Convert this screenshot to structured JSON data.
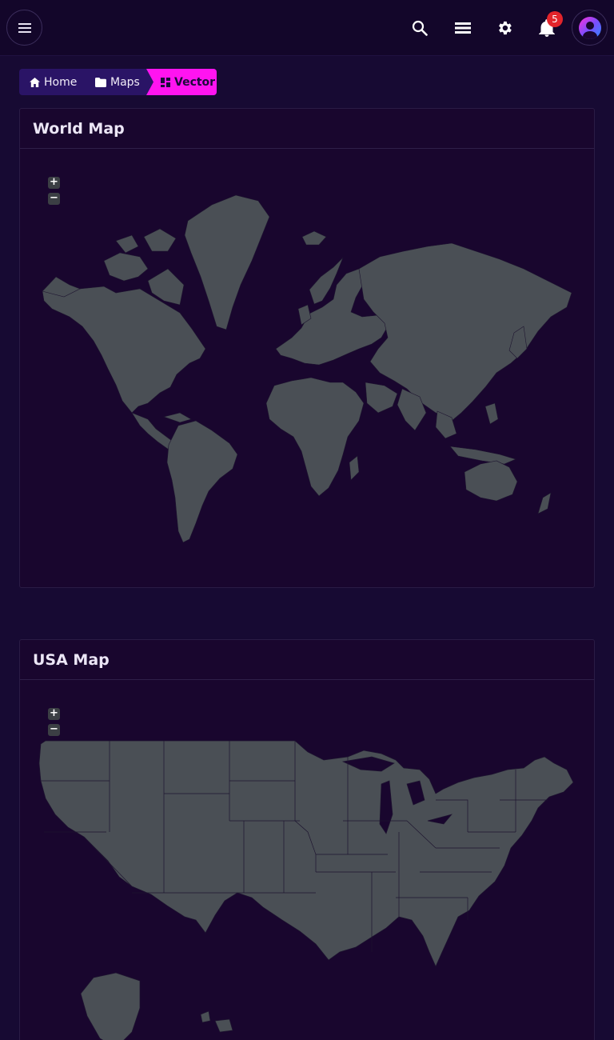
{
  "header": {
    "notifications_count": "5",
    "icons": [
      "menu-icon",
      "search-icon",
      "list-icon",
      "gear-icon",
      "bell-icon",
      "avatar"
    ]
  },
  "breadcrumb": {
    "home": "Home",
    "maps": "Maps",
    "current": "Vector"
  },
  "world_map": {
    "title": "World Map",
    "zoom_in": "+",
    "zoom_out": "−"
  },
  "usa_map": {
    "title": "USA Map",
    "zoom_in": "+",
    "zoom_out": "−"
  },
  "colors": {
    "background": "#170a33",
    "card": "#19062e",
    "land": "#4a4f55",
    "accent": "#ff14f0",
    "breadcrumb": "#2a1466",
    "badge": "#e3242b"
  }
}
